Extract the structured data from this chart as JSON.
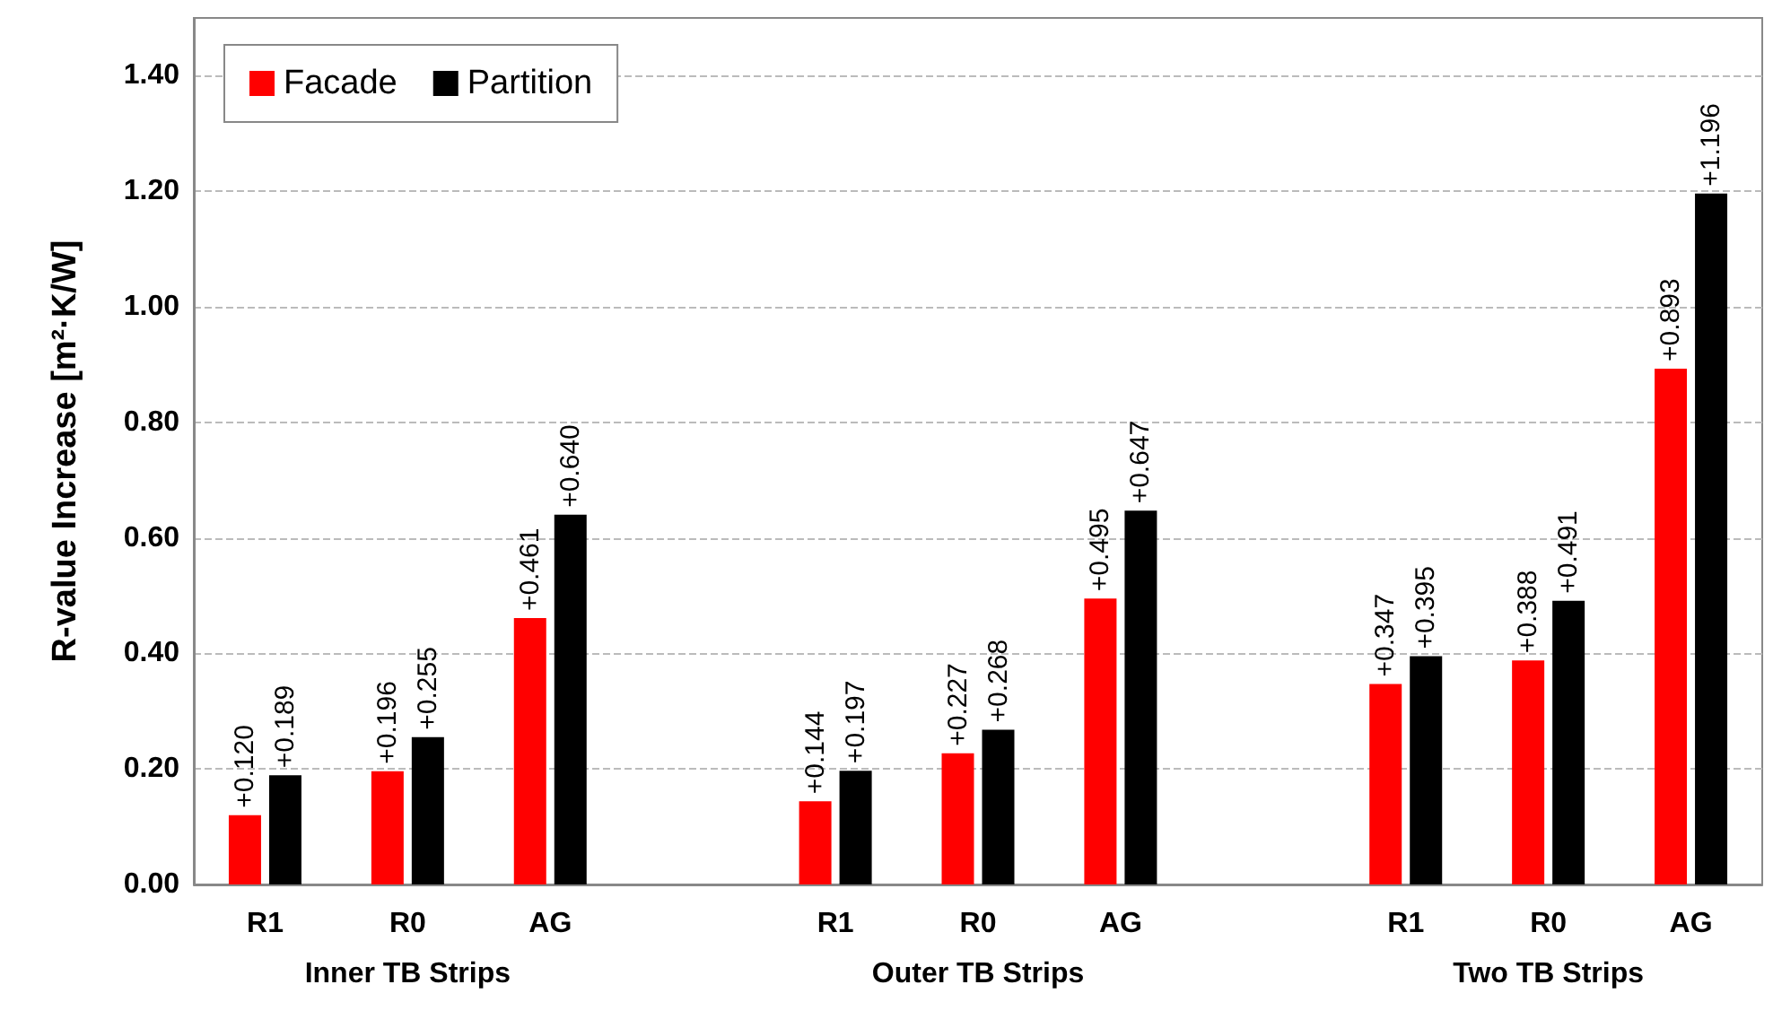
{
  "chart_data": {
    "type": "bar",
    "ylabel": "R-value Increase [m²·K/W]",
    "categories": [
      "R1",
      "R0",
      "AG",
      null,
      "R1",
      "R0",
      "AG",
      null,
      "R1",
      "R0",
      "AG"
    ],
    "annotations": [
      "Inner TB Strips",
      "Outer TB Strips",
      "Two TB Strips"
    ],
    "series": [
      {
        "name": "Facade",
        "color": "#ff0000",
        "values": [
          0.12,
          0.196,
          0.461,
          null,
          0.144,
          0.227,
          0.495,
          null,
          0.347,
          0.388,
          0.893
        ],
        "value_labels": [
          "+0.120",
          "+0.196",
          "+0.461",
          null,
          "+0.144",
          "+0.227",
          "+0.495",
          null,
          "+0.347",
          "+0.388",
          "+0.893"
        ]
      },
      {
        "name": "Partition",
        "color": "#000000",
        "values": [
          0.189,
          0.255,
          0.64,
          null,
          0.197,
          0.268,
          0.647,
          null,
          0.395,
          0.491,
          1.196
        ],
        "value_labels": [
          "+0.189",
          "+0.255",
          "+0.640",
          null,
          "+0.197",
          "+0.268",
          "+0.647",
          null,
          "+0.395",
          "+0.491",
          "+1.196"
        ]
      }
    ],
    "ylim": [
      0,
      1.5
    ],
    "yticks": [
      {
        "value": 0,
        "label": "0.00"
      },
      {
        "value": 0.2,
        "label": "0.20"
      },
      {
        "value": 0.4,
        "label": "0.40"
      },
      {
        "value": 0.6,
        "label": "0.60"
      },
      {
        "value": 0.8,
        "label": "0.80"
      },
      {
        "value": 1.0,
        "label": "1.00"
      },
      {
        "value": 1.2,
        "label": "1.20"
      },
      {
        "value": 1.4,
        "label": "1.40"
      }
    ],
    "grid": "y",
    "legend": "top left"
  }
}
